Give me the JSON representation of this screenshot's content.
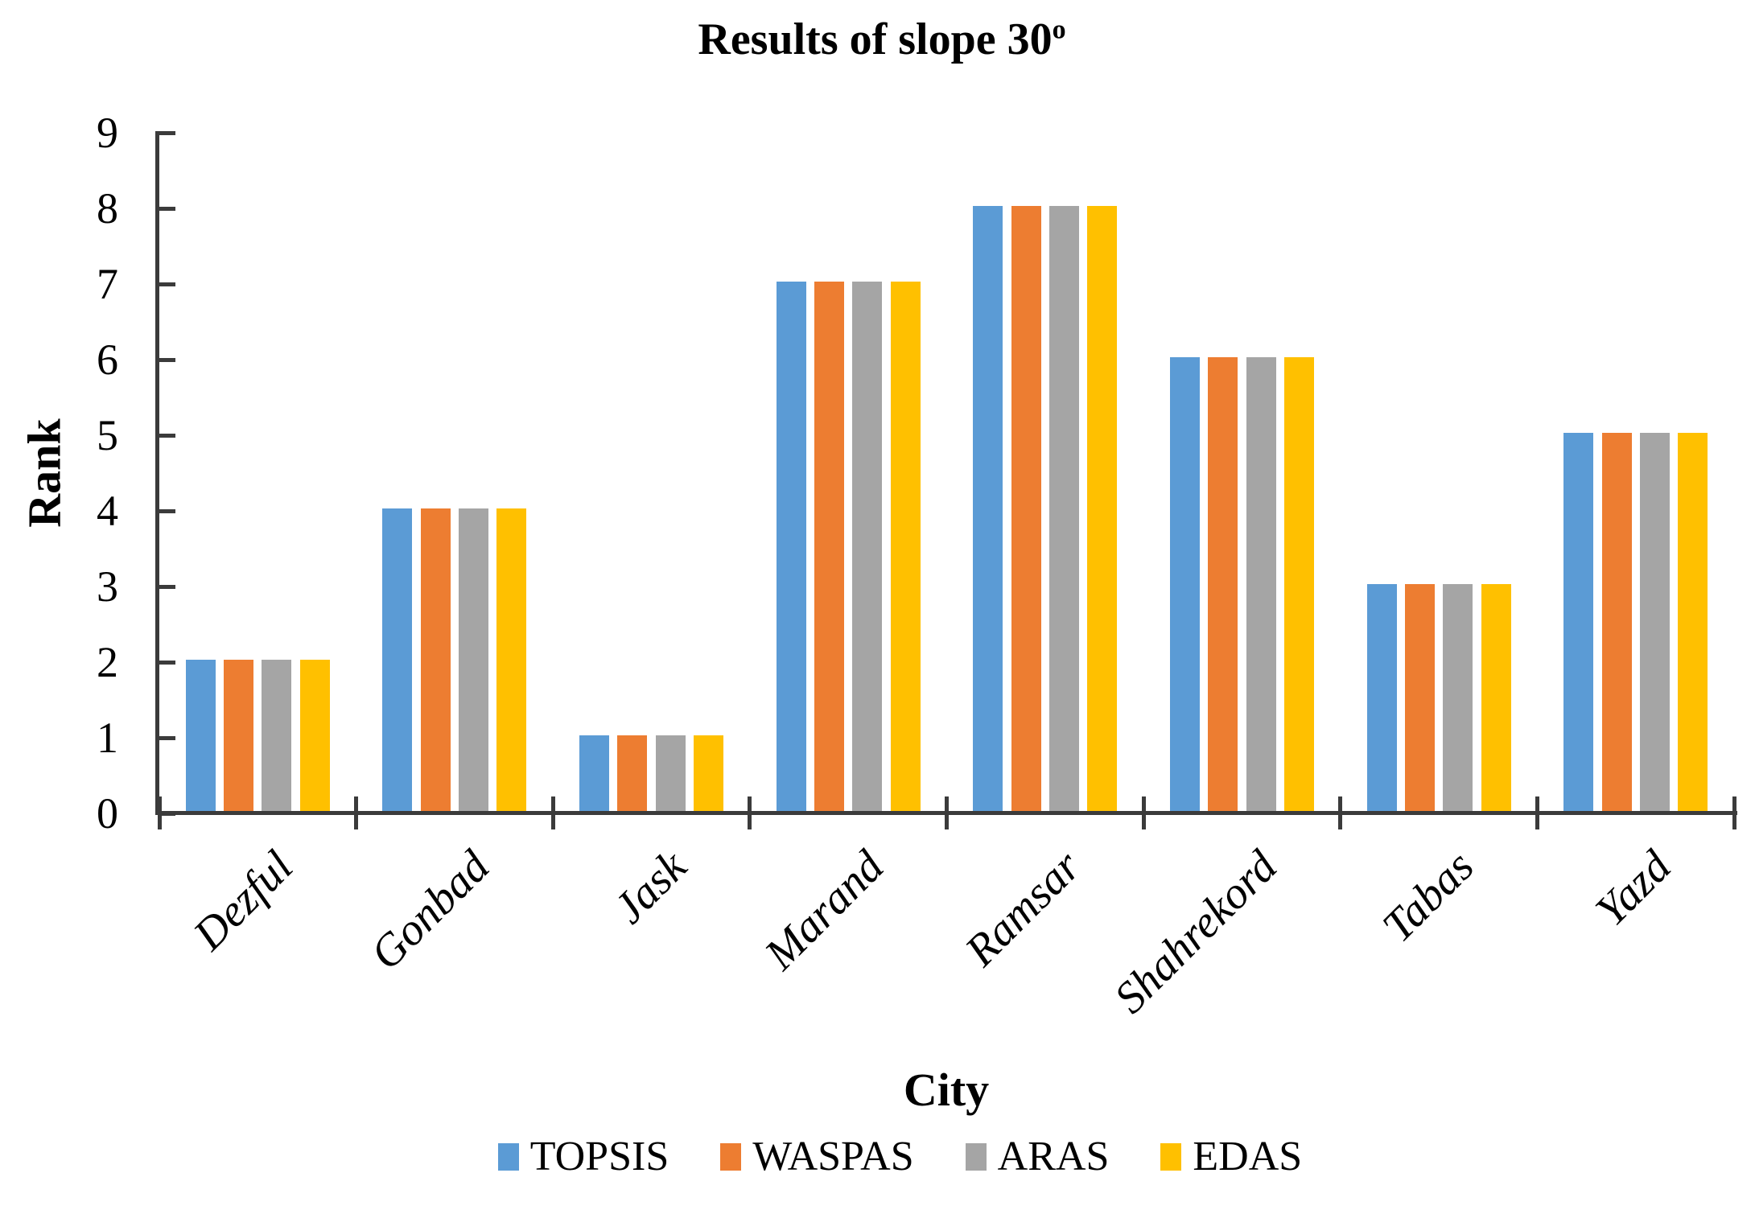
{
  "header": {
    "title_main": "Results of slope 30",
    "title_sup": "o"
  },
  "colors": {
    "axis": "#3b3b3b",
    "text": "#000000"
  },
  "chart_data": {
    "type": "bar",
    "title": "Results of slope 30°",
    "categories": [
      "Dezful",
      "Gonbad",
      "Jask",
      "Marand",
      "Ramsar",
      "Shahrekord",
      "Tabas",
      "Yazd"
    ],
    "series": [
      {
        "name": "TOPSIS",
        "color": "#5B9BD5",
        "values": [
          2,
          4,
          1,
          7,
          8,
          6,
          3,
          5
        ]
      },
      {
        "name": "WASPAS",
        "color": "#ED7D31",
        "values": [
          2,
          4,
          1,
          7,
          8,
          6,
          3,
          5
        ]
      },
      {
        "name": "ARAS",
        "color": "#A5A5A5",
        "values": [
          2,
          4,
          1,
          7,
          8,
          6,
          3,
          5
        ]
      },
      {
        "name": "EDAS",
        "color": "#FFC000",
        "values": [
          2,
          4,
          1,
          7,
          8,
          6,
          3,
          5
        ]
      }
    ],
    "xlabel": "City",
    "ylabel": "Rank",
    "ylim": [
      0,
      9
    ],
    "y_ticks": [
      0,
      1,
      2,
      3,
      4,
      5,
      6,
      7,
      8,
      9
    ],
    "grid": false,
    "legend_position": "bottom"
  }
}
